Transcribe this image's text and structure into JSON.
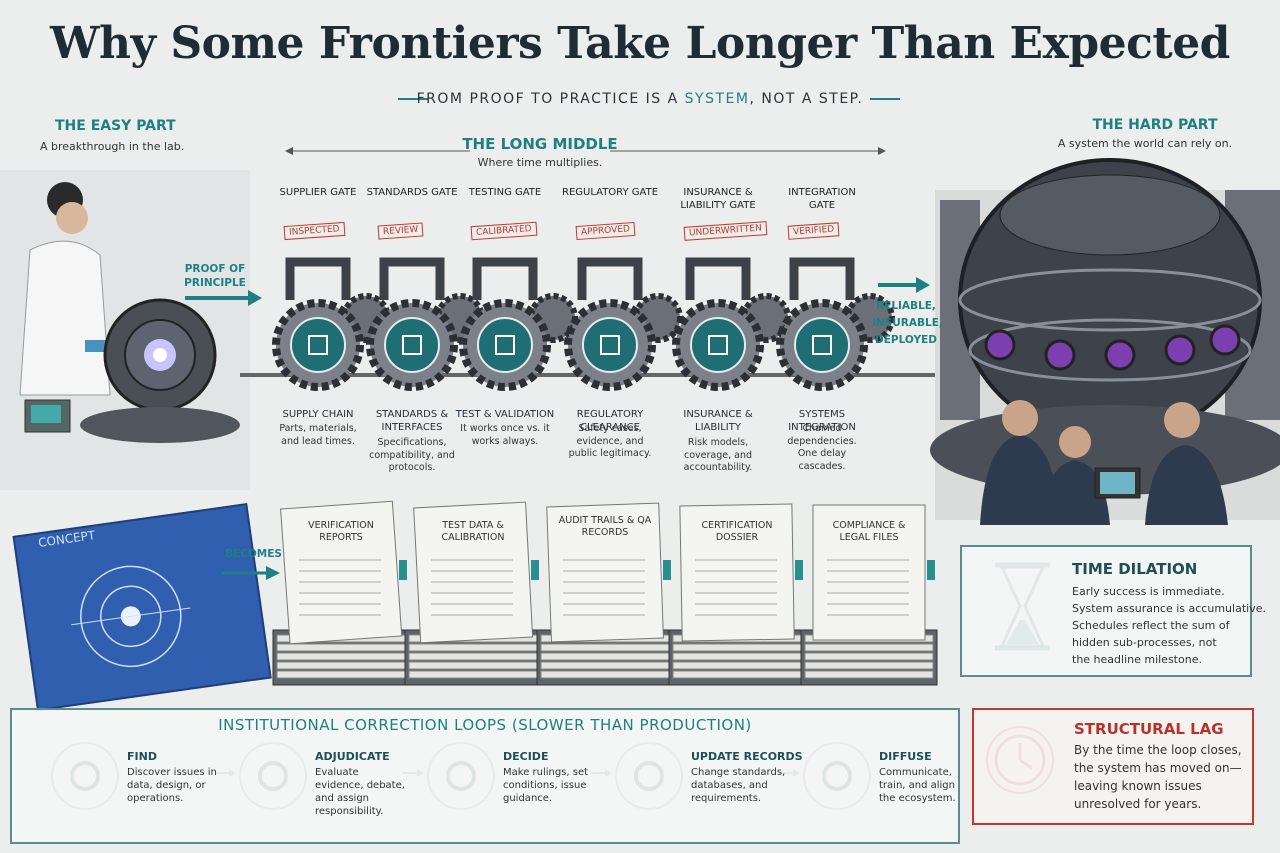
{
  "title": "Why Some Frontiers Take Longer Than Expected",
  "subtitle": {
    "before": "FROM PROOF TO PRACTICE IS A",
    "highlight": "SYSTEM",
    "after": ", NOT A STEP."
  },
  "easy_part": {
    "heading": "THE EASY PART",
    "text": "A breakthrough in the lab."
  },
  "long_middle": {
    "heading": "THE LONG MIDDLE",
    "text": "Where time multiplies."
  },
  "hard_part": {
    "heading": "THE HARD PART",
    "text": "A system the world can rely on."
  },
  "proof_label": "PROOF OF PRINCIPLE",
  "outcome_label": "RELIABLE, INSURABLE, DEPLOYED",
  "gates": [
    {
      "name": "SUPPLIER GATE",
      "stamp": "INSPECTED",
      "title": "SUPPLY CHAIN",
      "text": "Parts, materials, and lead times."
    },
    {
      "name": "STANDARDS GATE",
      "stamp": "REVIEW",
      "title": "STANDARDS & INTERFACES",
      "text": "Specifications, compatibility, and protocols."
    },
    {
      "name": "TESTING GATE",
      "stamp": "CALIBRATED",
      "title": "TEST & VALIDATION",
      "text": "It works once vs. it works always."
    },
    {
      "name": "REGULATORY GATE",
      "stamp": "APPROVED",
      "title": "REGULATORY CLEARANCE",
      "text": "Safety cases, evidence, and public legitimacy."
    },
    {
      "name": "INSURANCE & LIABILITY GATE",
      "stamp": "UNDERWRITTEN",
      "title": "INSURANCE & LIABILITY",
      "text": "Risk models, coverage, and accountability."
    },
    {
      "name": "INTEGRATION GATE",
      "stamp": "VERIFIED",
      "title": "SYSTEMS INTEGRATION",
      "text": "Chained dependencies. One delay cascades."
    }
  ],
  "concept_label": "CONCEPT",
  "becomes_label": "BECOMES",
  "binders": [
    "VERIFICATION REPORTS",
    "TEST DATA & CALIBRATION",
    "AUDIT TRAILS & QA RECORDS",
    "CERTIFICATION DOSSIER",
    "COMPLIANCE & LEGAL FILES"
  ],
  "time_dilation": {
    "heading": "TIME DILATION",
    "lines": [
      "Early success is immediate.",
      "System assurance is accumulative.",
      "Schedules reflect the sum of",
      "hidden sub-processes, not",
      "the headline milestone."
    ]
  },
  "loops": {
    "heading": "INSTITUTIONAL CORRECTION LOOPS (SLOWER THAN PRODUCTION)",
    "steps": [
      {
        "title": "FIND",
        "text": "Discover issues in data, design, or operations."
      },
      {
        "title": "ADJUDICATE",
        "text": "Evaluate evidence, debate, and assign responsibility."
      },
      {
        "title": "DECIDE",
        "text": "Make rulings, set conditions, issue guidance."
      },
      {
        "title": "UPDATE RECORDS",
        "text": "Change standards, databases, and requirements."
      },
      {
        "title": "DIFFUSE",
        "text": "Communicate, train, and align the ecosystem."
      }
    ]
  },
  "structural_lag": {
    "heading": "STRUCTURAL LAG",
    "lines": [
      "By the time the loop closes,",
      "the system has moved on—",
      "leaving known issues",
      "unresolved for years."
    ]
  }
}
